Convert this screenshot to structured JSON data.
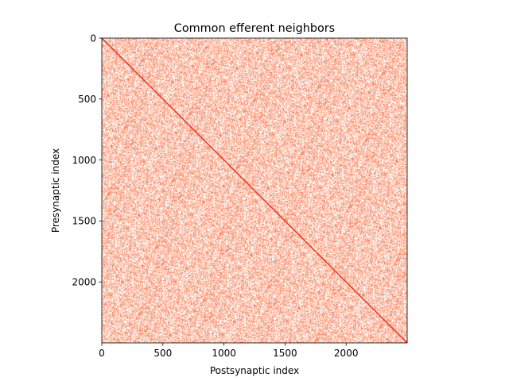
{
  "chart_data": {
    "type": "heatmap",
    "title": "Common efferent neighbors",
    "xlabel": "Postsynaptic index",
    "ylabel": "Presynaptic index",
    "n": 2500,
    "xlim": [
      0,
      2500
    ],
    "ylim": [
      2500,
      0
    ],
    "xticks": [
      0,
      500,
      1000,
      1500,
      2000
    ],
    "yticks": [
      0,
      500,
      1000,
      1500,
      2000
    ],
    "x_tick_labels": [
      "0",
      "500",
      "1000",
      "1500",
      "2000"
    ],
    "y_tick_labels": [
      "0",
      "500",
      "1000",
      "1500",
      "2000"
    ],
    "colormap": "Reds",
    "background_color": "#ffffff",
    "cell_colors": [
      "#fcbba1",
      "#fc9272",
      "#fb6a4a"
    ],
    "nonzero_fraction": 0.62,
    "diagonal": {
      "start": 0,
      "end": 2500,
      "color": "#e8402a"
    },
    "grid": false,
    "legend": "none"
  }
}
